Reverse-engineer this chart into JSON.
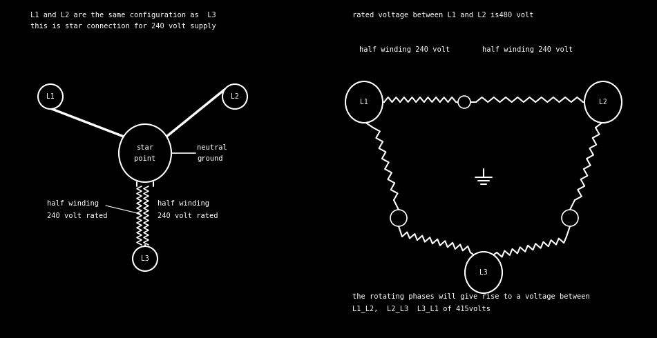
{
  "bg_color": "#000000",
  "line_color": "#ffffff",
  "font_size": 7.5,
  "title_left_line1": "L1 and L2 are the same configuration as  L3",
  "title_left_line2": "this is star connection for 240 volt supply",
  "title_right_line1": "rated voltage between L1 and L2 is480 volt",
  "title_right_half_left": "half winding 240 volt",
  "title_right_half_right": "half winding 240 volt",
  "left_label1a": "half winding",
  "left_label1b": "240 volt rated",
  "right_label1a": "half winding",
  "right_label1b": "240 volt rated",
  "bottom_line1": "the rotating phases will give rise to a voltage between",
  "bottom_line2": "L1_L2,  L2_L3  L3_L1 of 415volts"
}
